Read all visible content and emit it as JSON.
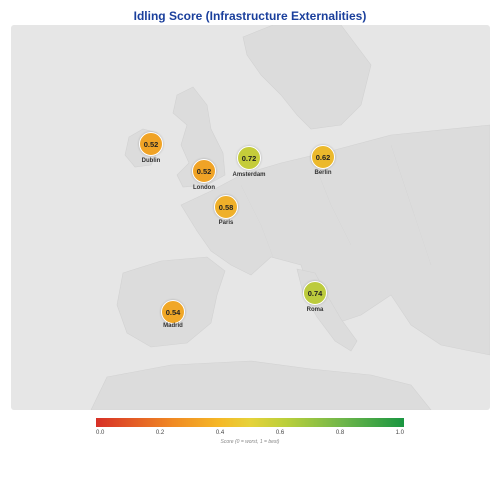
{
  "title": "Idling Score (Infrastructure Externalities)",
  "cities": [
    {
      "name": "Dublin",
      "score": "0.52",
      "color": "#f0a326"
    },
    {
      "name": "London",
      "score": "0.52",
      "color": "#f0a326"
    },
    {
      "name": "Amsterdam",
      "score": "0.72",
      "color": "#c5cc3a"
    },
    {
      "name": "Berlin",
      "score": "0.62",
      "color": "#ecb92c"
    },
    {
      "name": "Paris",
      "score": "0.58",
      "color": "#efb02a"
    },
    {
      "name": "Madrid",
      "score": "0.54",
      "color": "#f0a727"
    },
    {
      "name": "Roma",
      "score": "0.74",
      "color": "#bccb3d"
    }
  ],
  "legend": {
    "ticks": [
      "0.0",
      "0.2",
      "0.4",
      "0.6",
      "0.8",
      "1.0"
    ],
    "caption": "Score (0 = worst, 1 = best)",
    "colors": [
      "#d73027",
      "#f08a24",
      "#f5b827",
      "#e6d23a",
      "#b9cf3b",
      "#6fb64a",
      "#1a9641"
    ]
  }
}
